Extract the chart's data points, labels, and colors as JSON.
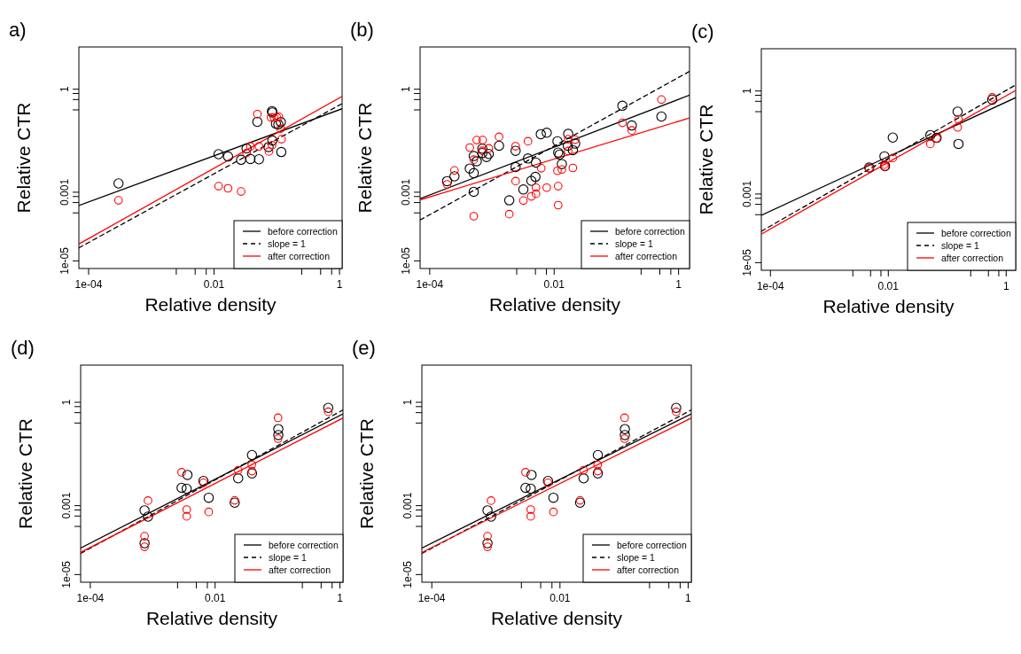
{
  "chart_data": [
    {
      "type": "scatter",
      "title": "a)",
      "xlabel": "Relative density",
      "ylabel": "Relative CTR",
      "log": "xy",
      "legend": "bottom right",
      "xlim": [
        7e-05,
        1.1
      ],
      "ylim": [
        6e-06,
        17
      ],
      "xticks": [
        {
          "value": 0.0001,
          "label": "1e-04"
        },
        {
          "value": 0.0025,
          "label": null
        },
        {
          "value": 0.005,
          "label": null
        },
        {
          "value": 0.0075,
          "label": null
        },
        {
          "value": 0.01,
          "label": "0.01"
        },
        {
          "value": 0.25,
          "label": null
        },
        {
          "value": 0.5,
          "label": null
        },
        {
          "value": 0.75,
          "label": null
        },
        {
          "value": 1,
          "label": "1"
        }
      ],
      "yticks": [
        {
          "value": 1e-05,
          "label": "1e-05"
        },
        {
          "value": 0.00025,
          "label": null
        },
        {
          "value": 0.0005,
          "label": null
        },
        {
          "value": 0.00075,
          "label": null
        },
        {
          "value": 0.001,
          "label": "0.001"
        },
        {
          "value": 0.25,
          "label": null
        },
        {
          "value": 0.5,
          "label": null
        },
        {
          "value": 0.75,
          "label": null
        },
        {
          "value": 1,
          "label": "1"
        }
      ],
      "series": [
        {
          "type": "line",
          "name": "before correction",
          "color": "#000000",
          "line_style": "solid",
          "x": [
            7e-05,
            1.1
          ],
          "values": [
            0.00041,
            0.27
          ]
        },
        {
          "type": "line",
          "name": "slope = 1",
          "color": "#000000",
          "line_style": "dashed",
          "x": [
            7e-05,
            1.1
          ],
          "values": [
            2.4e-05,
            0.38
          ]
        },
        {
          "type": "line",
          "name": "after correction",
          "color": "#ff0000",
          "line_style": "solid",
          "x": [
            7e-05,
            1.1
          ],
          "values": [
            3.1e-05,
            0.62
          ]
        },
        {
          "type": "scatter",
          "marker": "circle",
          "color": "#000000",
          "x": [
            0.0003,
            0.0118,
            0.0167,
            0.027,
            0.038,
            0.052,
            0.033,
            0.049,
            0.084,
            0.085,
            0.097,
            0.116,
            0.106,
            0.074,
            0.085,
            0.118
          ],
          "values": [
            0.0018,
            0.0128,
            0.011,
            0.0088,
            0.0093,
            0.0091,
            0.0188,
            0.112,
            0.23,
            0.21,
            0.098,
            0.11,
            0.094,
            0.0207,
            0.032,
            0.0148
          ]
        },
        {
          "type": "scatter",
          "marker": "circle",
          "color": "#ff0000",
          "x": [
            0.0003,
            0.0118,
            0.0167,
            0.027,
            0.049,
            0.033,
            0.038,
            0.052,
            0.075,
            0.084,
            0.081,
            0.09,
            0.1,
            0.108,
            0.115,
            0.119
          ],
          "values": [
            0.00058,
            0.0015,
            0.0013,
            0.00105,
            0.188,
            0.0139,
            0.0216,
            0.0216,
            0.0154,
            0.0233,
            0.151,
            0.151,
            0.151,
            0.157,
            0.071,
            0.035
          ]
        }
      ]
    },
    {
      "type": "scatter",
      "title": "(b)",
      "xlabel": "Relative density",
      "ylabel": "Relative CTR",
      "log": "xy",
      "legend": "bottom right",
      "xlim": [
        7e-05,
        1.5
      ],
      "ylim": [
        6e-06,
        17
      ],
      "xticks": [
        {
          "value": 0.0001,
          "label": "1e-04"
        },
        {
          "value": 0.0025,
          "label": null
        },
        {
          "value": 0.005,
          "label": null
        },
        {
          "value": 0.0075,
          "label": null
        },
        {
          "value": 0.01,
          "label": "0.01"
        },
        {
          "value": 0.25,
          "label": null
        },
        {
          "value": 0.5,
          "label": null
        },
        {
          "value": 0.75,
          "label": null
        },
        {
          "value": 1,
          "label": "1"
        }
      ],
      "yticks": [
        {
          "value": 1e-05,
          "label": "1e-05"
        },
        {
          "value": 0.00025,
          "label": null
        },
        {
          "value": 0.0005,
          "label": null
        },
        {
          "value": 0.00075,
          "label": null
        },
        {
          "value": 0.001,
          "label": "0.001"
        },
        {
          "value": 0.25,
          "label": null
        },
        {
          "value": 0.5,
          "label": null
        },
        {
          "value": 0.75,
          "label": null
        },
        {
          "value": 1,
          "label": "1"
        }
      ],
      "series": [
        {
          "type": "line",
          "name": "before correction",
          "color": "#000000",
          "line_style": "solid",
          "x": [
            7e-05,
            1.5
          ],
          "values": [
            0.00065,
            0.67
          ]
        },
        {
          "type": "line",
          "name": "slope = 1",
          "color": "#000000",
          "line_style": "dashed",
          "x": [
            7e-05,
            1.5
          ],
          "values": [
            0.000155,
            3.3
          ]
        },
        {
          "type": "line",
          "name": "after correction",
          "color": "#ff0000",
          "line_style": "solid",
          "x": [
            7e-05,
            1.5
          ],
          "values": [
            0.0006,
            0.145
          ]
        },
        {
          "type": "scatter",
          "marker": "circle",
          "color": "#000000",
          "x": [
            0.00019,
            0.00025,
            0.00044,
            0.00051,
            0.00051,
            0.00057,
            0.00051,
            0.0007,
            0.0007,
            0.00082,
            0.00089,
            0.0013,
            0.0024,
            0.0024,
            0.0038,
            0.0051,
            0.0043,
            0.005,
            0.0032,
            0.0019,
            0.0061,
            0.0076,
            0.0113,
            0.0116,
            0.0122,
            0.0133,
            0.0168,
            0.0166,
            0.02,
            0.0218,
            0.125,
            0.177,
            0.53
          ],
          "values": [
            0.0021,
            0.0029,
            0.0049,
            0.0036,
            0.0113,
            0.008,
            0.00103,
            0.0185,
            0.0138,
            0.0106,
            0.013,
            0.0226,
            0.0054,
            0.0161,
            0.0096,
            0.0073,
            0.00215,
            0.0028,
            0.0012,
            0.00058,
            0.049,
            0.054,
            0.0305,
            0.0143,
            0.0125,
            0.0066,
            0.05,
            0.0226,
            0.0168,
            0.026,
            0.33,
            0.088,
            0.16
          ]
        },
        {
          "type": "scatter",
          "marker": "circle",
          "color": "#ff0000",
          "x": [
            0.00019,
            0.00025,
            0.00044,
            0.00057,
            0.00071,
            0.00051,
            0.00051,
            0.0007,
            0.00089,
            0.0013,
            0.0024,
            0.0024,
            0.0038,
            0.0062,
            0.0051,
            0.0051,
            0.0043,
            0.0032,
            0.0019,
            0.0076,
            0.0113,
            0.0133,
            0.0116,
            0.0116,
            0.0168,
            0.0168,
            0.0218,
            0.02,
            0.125,
            0.177,
            0.53
          ],
          "values": [
            0.0017,
            0.0043,
            0.02,
            0.033,
            0.033,
            0.0089,
            0.0002,
            0.0161,
            0.0189,
            0.041,
            0.0218,
            0.0021,
            0.0305,
            0.005,
            0.00136,
            0.0009,
            0.00076,
            0.00057,
            0.00023,
            0.00136,
            0.0042,
            0.0046,
            0.0015,
            0.00042,
            0.035,
            0.0158,
            0.034,
            0.0051,
            0.105,
            0.063,
            0.5
          ]
        }
      ]
    },
    {
      "type": "scatter",
      "title": "(c)",
      "xlabel": "Relative density",
      "ylabel": "Relative CTR",
      "log": "xy",
      "legend": "bottom right",
      "xlim": [
        7e-05,
        1.45
      ],
      "ylim": [
        6e-06,
        17
      ],
      "xticks": [
        {
          "value": 0.0001,
          "label": "1e-04"
        },
        {
          "value": 0.0025,
          "label": null
        },
        {
          "value": 0.005,
          "label": null
        },
        {
          "value": 0.0075,
          "label": null
        },
        {
          "value": 0.01,
          "label": "0.01"
        },
        {
          "value": 0.25,
          "label": null
        },
        {
          "value": 0.5,
          "label": null
        },
        {
          "value": 0.75,
          "label": null
        },
        {
          "value": 1,
          "label": "1"
        }
      ],
      "yticks": [
        {
          "value": 1e-05,
          "label": "1e-05"
        },
        {
          "value": 0.00025,
          "label": null
        },
        {
          "value": 0.0005,
          "label": null
        },
        {
          "value": 0.00075,
          "label": null
        },
        {
          "value": 0.001,
          "label": "0.001"
        },
        {
          "value": 0.25,
          "label": null
        },
        {
          "value": 0.5,
          "label": null
        },
        {
          "value": 0.75,
          "label": null
        },
        {
          "value": 1,
          "label": "1"
        }
      ],
      "series": [
        {
          "type": "line",
          "name": "before correction",
          "color": "#000000",
          "line_style": "solid",
          "x": [
            7e-05,
            1.45
          ],
          "values": [
            0.00024,
            0.64
          ]
        },
        {
          "type": "line",
          "name": "slope = 1",
          "color": "#000000",
          "line_style": "dashed",
          "x": [
            7e-05,
            1.45
          ],
          "values": [
            8.2e-05,
            1.5
          ]
        },
        {
          "type": "line",
          "name": "after correction",
          "color": "#ff0000",
          "line_style": "solid",
          "x": [
            7e-05,
            1.45
          ],
          "values": [
            6.8e-05,
            1.04
          ]
        },
        {
          "type": "scatter",
          "marker": "circle",
          "color": "#000000",
          "x": [
            0.00475,
            0.0086,
            0.0088,
            0.0119,
            0.0517,
            0.066,
            0.15,
            0.155,
            0.58
          ],
          "values": [
            0.0059,
            0.0125,
            0.0065,
            0.044,
            0.052,
            0.043,
            0.25,
            0.0287,
            0.56
          ]
        },
        {
          "type": "scatter",
          "marker": "circle",
          "color": "#ff0000",
          "x": [
            0.00475,
            0.0086,
            0.0088,
            0.0119,
            0.0517,
            0.066,
            0.15,
            0.155,
            0.58
          ],
          "values": [
            0.0057,
            0.0072,
            0.0063,
            0.0111,
            0.0287,
            0.042,
            0.087,
            0.148,
            0.65
          ]
        }
      ]
    },
    {
      "type": "scatter",
      "title": "(d)",
      "xlabel": "Relative density",
      "ylabel": "Relative CTR",
      "log": "xy",
      "legend": "bottom right",
      "xlim": [
        7e-05,
        1.12
      ],
      "ylim": [
        6e-06,
        12
      ],
      "xticks": [
        {
          "value": 0.0001,
          "label": "1e-04"
        },
        {
          "value": 0.0025,
          "label": null
        },
        {
          "value": 0.005,
          "label": null
        },
        {
          "value": 0.0075,
          "label": null
        },
        {
          "value": 0.01,
          "label": "0.01"
        },
        {
          "value": 0.25,
          "label": null
        },
        {
          "value": 0.5,
          "label": null
        },
        {
          "value": 0.75,
          "label": null
        },
        {
          "value": 1,
          "label": "1"
        }
      ],
      "yticks": [
        {
          "value": 1e-05,
          "label": "1e-05"
        },
        {
          "value": 0.00025,
          "label": null
        },
        {
          "value": 0.0005,
          "label": null
        },
        {
          "value": 0.00075,
          "label": null
        },
        {
          "value": 0.001,
          "label": "0.001"
        },
        {
          "value": 0.25,
          "label": null
        },
        {
          "value": 0.5,
          "label": null
        },
        {
          "value": 0.75,
          "label": null
        },
        {
          "value": 1,
          "label": "1"
        }
      ],
      "series": [
        {
          "type": "line",
          "name": "before correction",
          "color": "#000000",
          "line_style": "solid",
          "x": [
            7e-05,
            1.12
          ],
          "values": [
            5.9e-05,
            0.46
          ]
        },
        {
          "type": "line",
          "name": "slope = 1",
          "color": "#000000",
          "line_style": "dashed",
          "x": [
            7e-05,
            1.12
          ],
          "values": [
            4.1e-05,
            0.6
          ]
        },
        {
          "type": "line",
          "name": "after correction",
          "color": "#ff0000",
          "line_style": "solid",
          "x": [
            7e-05,
            1.12
          ],
          "values": [
            4.4e-05,
            0.35
          ]
        },
        {
          "type": "scatter",
          "marker": "circle",
          "color": "#000000",
          "x": [
            0.00074,
            0.00084,
            0.00074,
            0.0029,
            0.0036,
            0.0035,
            0.0065,
            0.0079,
            0.0206,
            0.0234,
            0.039,
            0.039,
            0.103,
            0.103,
            0.65
          ],
          "values": [
            0.00073,
            0.00048,
            8.1e-05,
            0.0033,
            0.0078,
            0.0031,
            0.0052,
            0.0017,
            0.00122,
            0.0062,
            0.0295,
            0.0086,
            0.167,
            0.112,
            0.69
          ]
        },
        {
          "type": "scatter",
          "marker": "circle",
          "color": "#ff0000",
          "x": [
            0.00084,
            0.00074,
            0.00074,
            0.0029,
            0.0035,
            0.0035,
            0.0065,
            0.0079,
            0.0206,
            0.0234,
            0.0387,
            0.039,
            0.102,
            0.102,
            0.65
          ],
          "values": [
            0.0014,
            0.00013,
            6.4e-05,
            0.0093,
            0.00077,
            0.00049,
            0.0046,
            0.00066,
            0.00143,
            0.0107,
            0.0153,
            0.0101,
            0.355,
            0.088,
            0.53
          ]
        }
      ]
    },
    {
      "type": "scatter",
      "title": "(e)",
      "xlabel": "Relative density",
      "ylabel": "Relative CTR",
      "log": "xy",
      "legend": "bottom right",
      "xlim": [
        7e-05,
        1.12
      ],
      "ylim": [
        6e-06,
        12
      ],
      "xticks": [
        {
          "value": 0.0001,
          "label": "1e-04"
        },
        {
          "value": 0.0025,
          "label": null
        },
        {
          "value": 0.005,
          "label": null
        },
        {
          "value": 0.0075,
          "label": null
        },
        {
          "value": 0.01,
          "label": "0.01"
        },
        {
          "value": 0.25,
          "label": null
        },
        {
          "value": 0.5,
          "label": null
        },
        {
          "value": 0.75,
          "label": null
        },
        {
          "value": 1,
          "label": "1"
        }
      ],
      "yticks": [
        {
          "value": 1e-05,
          "label": "1e-05"
        },
        {
          "value": 0.00025,
          "label": null
        },
        {
          "value": 0.0005,
          "label": null
        },
        {
          "value": 0.00075,
          "label": null
        },
        {
          "value": 0.001,
          "label": "0.001"
        },
        {
          "value": 0.25,
          "label": null
        },
        {
          "value": 0.5,
          "label": null
        },
        {
          "value": 0.75,
          "label": null
        },
        {
          "value": 1,
          "label": "1"
        }
      ],
      "series": [
        {
          "type": "line",
          "name": "before correction",
          "color": "#000000",
          "line_style": "solid",
          "x": [
            7e-05,
            1.12
          ],
          "values": [
            5.9e-05,
            0.46
          ]
        },
        {
          "type": "line",
          "name": "slope = 1",
          "color": "#000000",
          "line_style": "dashed",
          "x": [
            7e-05,
            1.12
          ],
          "values": [
            4.1e-05,
            0.6
          ]
        },
        {
          "type": "line",
          "name": "after correction",
          "color": "#ff0000",
          "line_style": "solid",
          "x": [
            7e-05,
            1.12
          ],
          "values": [
            4.4e-05,
            0.35
          ]
        },
        {
          "type": "scatter",
          "marker": "circle",
          "color": "#000000",
          "x": [
            0.00074,
            0.00084,
            0.00074,
            0.0029,
            0.0036,
            0.0035,
            0.0065,
            0.0079,
            0.0206,
            0.0234,
            0.039,
            0.039,
            0.103,
            0.103,
            0.65
          ],
          "values": [
            0.00073,
            0.00048,
            8.1e-05,
            0.0033,
            0.0078,
            0.0031,
            0.0052,
            0.0017,
            0.00122,
            0.0062,
            0.0295,
            0.0086,
            0.167,
            0.112,
            0.69
          ]
        },
        {
          "type": "scatter",
          "marker": "circle",
          "color": "#ff0000",
          "x": [
            0.00084,
            0.00074,
            0.00074,
            0.0029,
            0.0035,
            0.0035,
            0.0065,
            0.0079,
            0.0206,
            0.0234,
            0.0387,
            0.039,
            0.102,
            0.102,
            0.65
          ],
          "values": [
            0.0014,
            0.00013,
            6.4e-05,
            0.0093,
            0.00077,
            0.00049,
            0.0046,
            0.00066,
            0.00143,
            0.0107,
            0.0153,
            0.0101,
            0.355,
            0.088,
            0.53
          ]
        }
      ]
    }
  ]
}
